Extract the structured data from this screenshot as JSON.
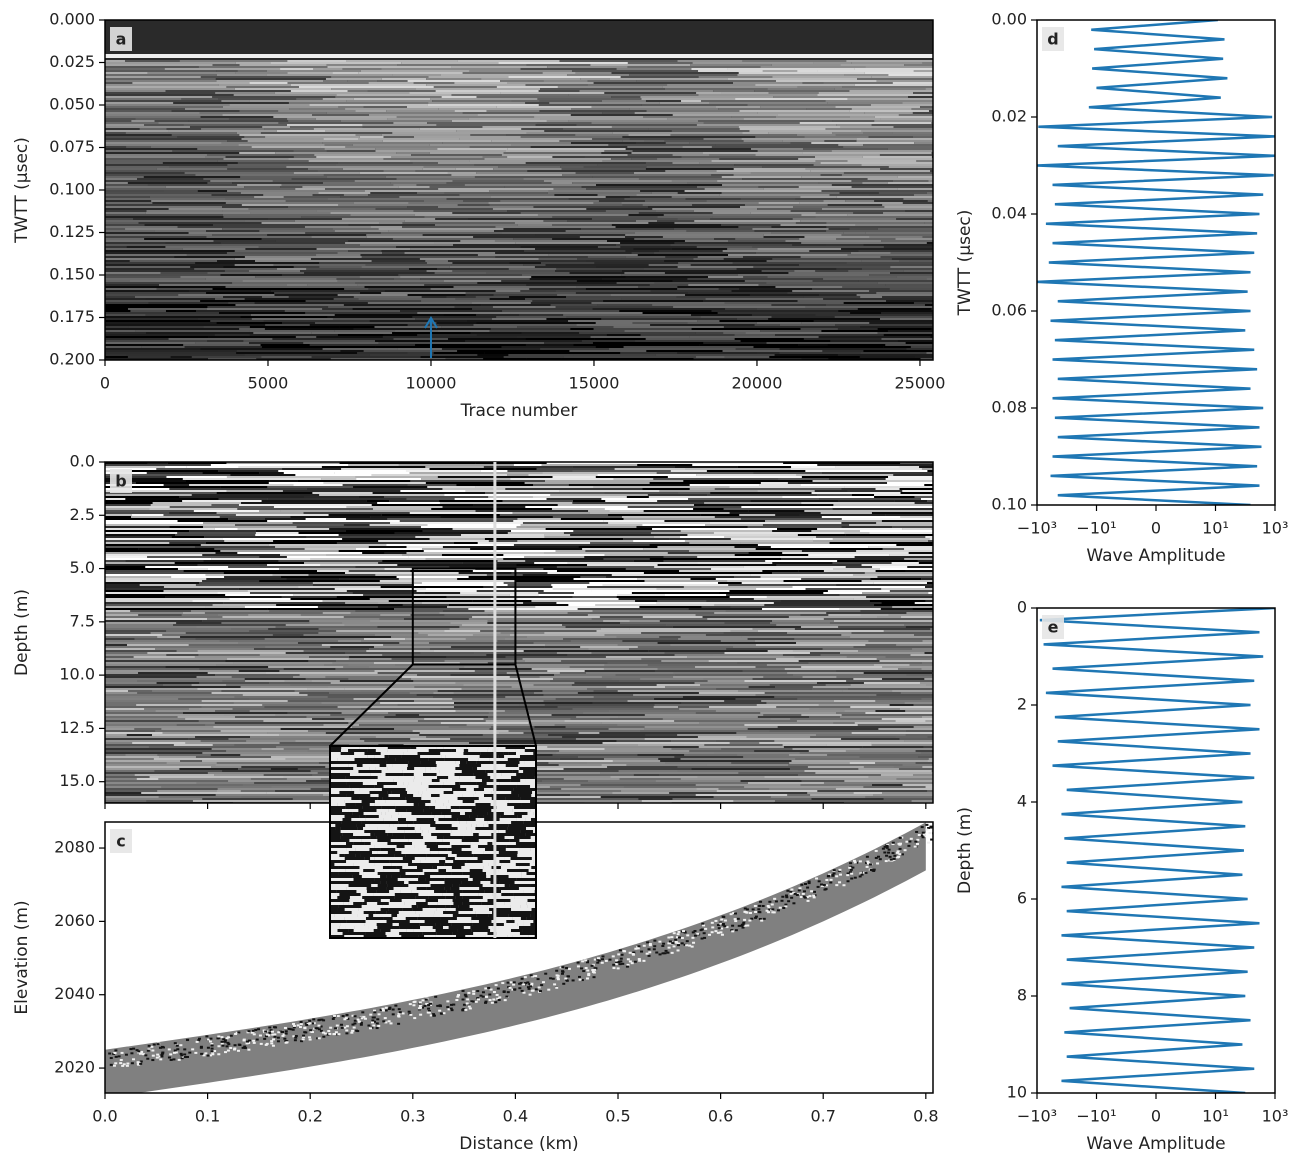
{
  "chart_data": [
    {
      "type": "radargram",
      "panel_label": "a",
      "x_label": "Trace number",
      "y_label": "TWTT (μsec)",
      "xlim": [
        0,
        25400
      ],
      "xticks": [
        0,
        5000,
        10000,
        15000,
        20000,
        25000
      ],
      "ylim": [
        0.2,
        0
      ],
      "yticks": [
        {
          "value": 0,
          "label": "0.000"
        },
        {
          "value": 0.025,
          "label": "0.025"
        },
        {
          "value": 0.05,
          "label": "0.050"
        },
        {
          "value": 0.075,
          "label": "0.075"
        },
        {
          "value": 0.1,
          "label": "0.100"
        },
        {
          "value": 0.125,
          "label": "0.125"
        },
        {
          "value": 0.15,
          "label": "0.150"
        },
        {
          "value": 0.175,
          "label": "0.175"
        },
        {
          "value": 0.2,
          "label": "0.200"
        }
      ],
      "arrow_x": 10000,
      "arrow_color": "#1f77b4"
    },
    {
      "type": "radargram",
      "panel_label": "b",
      "y_label": "Depth (m)",
      "xlim": [
        0,
        0.807
      ],
      "xticks": [
        0,
        0.1,
        0.2,
        0.3,
        0.4,
        0.5,
        0.6,
        0.7,
        0.8
      ],
      "ylim": [
        16,
        0
      ],
      "yticks": [
        {
          "value": 0,
          "label": "0.0"
        },
        2.5,
        {
          "value": 5,
          "label": "5.0"
        },
        {
          "value": 7.5,
          "label": "7.5"
        },
        {
          "value": 10,
          "label": "10.0"
        },
        12.5,
        {
          "value": 15,
          "label": "15.0"
        }
      ],
      "zoom_box": {
        "x": [
          0.3,
          0.4
        ],
        "y": [
          5,
          9.5
        ]
      },
      "marker_x": 0.38
    },
    {
      "type": "elevation",
      "panel_label": "c",
      "x_label": "Distance (km)",
      "y_label": "Elevation (m)",
      "xlim": [
        0,
        0.807
      ],
      "xticks": [
        {
          "value": 0,
          "label": "0.0"
        },
        0.1,
        0.2,
        0.3,
        0.4,
        0.5,
        0.6,
        0.7,
        0.8
      ],
      "ylim": [
        2013.2,
        2087.1
      ],
      "yticks": [
        2020,
        2040,
        2060,
        2080
      ]
    },
    {
      "type": "trace",
      "panel_label": "d",
      "x_label": "Wave Amplitude",
      "y_label": "TWTT (μsec)",
      "color": "#1f77b4",
      "xlim": [
        -1000,
        1000
      ],
      "xticks": [
        {
          "value": -1000,
          "label": "−10³"
        },
        {
          "value": -10,
          "label": "−10¹"
        },
        0,
        {
          "value": 10,
          "label": "10¹"
        },
        {
          "value": 1000,
          "label": "10³"
        }
      ],
      "ylim": [
        0.1,
        0
      ],
      "yticks": [
        {
          "value": 0,
          "label": "0.00"
        },
        0.02,
        0.04,
        0.06,
        0.08,
        {
          "value": 0.1,
          "label": "0.10"
        }
      ],
      "x": [
        0,
        0.002,
        0.004,
        0.006,
        0.008,
        0.01,
        0.012,
        0.014,
        0.016,
        0.018,
        0.02,
        0.022,
        0.024,
        0.026,
        0.028,
        0.03,
        0.032,
        0.034,
        0.036,
        0.038,
        0.04,
        0.042,
        0.044,
        0.046,
        0.048,
        0.05,
        0.052,
        0.054,
        0.056,
        0.058,
        0.06,
        0.062,
        0.064,
        0.066,
        0.068,
        0.07,
        0.072,
        0.074,
        0.076,
        0.078,
        0.08,
        0.082,
        0.084,
        0.086,
        0.088,
        0.09,
        0.092,
        0.094,
        0.096,
        0.098,
        0.1
      ],
      "values": [
        12,
        -15,
        20,
        -12,
        18,
        -14,
        25,
        -10,
        15,
        -18,
        800,
        -900,
        1000,
        -200,
        1000,
        -1000,
        900,
        -300,
        400,
        -250,
        300,
        -500,
        250,
        -300,
        200,
        -400,
        150,
        -1000,
        120,
        -200,
        150,
        -350,
        100,
        -250,
        200,
        -300,
        250,
        -200,
        150,
        -300,
        400,
        -250,
        300,
        -200,
        350,
        -300,
        250,
        -350,
        300,
        -200,
        150
      ]
    },
    {
      "type": "trace",
      "panel_label": "e",
      "x_label": "Wave Amplitude",
      "y_label": "Depth (m)",
      "color": "#1f77b4",
      "xlim": [
        -1000,
        1000
      ],
      "xticks": [
        {
          "value": -1000,
          "label": "−10³"
        },
        {
          "value": -10,
          "label": "−10¹"
        },
        0,
        {
          "value": 10,
          "label": "10¹"
        },
        {
          "value": 1000,
          "label": "10³"
        }
      ],
      "ylim": [
        10,
        0
      ],
      "yticks": [
        0,
        2,
        4,
        6,
        8,
        10
      ],
      "x": [
        0,
        0.25,
        0.5,
        0.75,
        1,
        1.25,
        1.5,
        1.75,
        2,
        2.25,
        2.5,
        2.75,
        3,
        3.25,
        3.5,
        3.75,
        4,
        4.25,
        4.5,
        4.75,
        5,
        5.25,
        5.5,
        5.75,
        6,
        6.25,
        6.5,
        6.75,
        7,
        7.25,
        7.5,
        7.75,
        8,
        8.25,
        8.5,
        8.75,
        9,
        9.25,
        9.5,
        9.75,
        10
      ],
      "values": [
        1000,
        -800,
        300,
        -600,
        400,
        -300,
        200,
        -500,
        150,
        -250,
        300,
        -200,
        150,
        -300,
        200,
        -100,
        80,
        -150,
        100,
        -120,
        90,
        -100,
        80,
        -150,
        120,
        -100,
        300,
        -150,
        200,
        -100,
        120,
        -150,
        100,
        -80,
        150,
        -120,
        80,
        -100,
        200,
        -150,
        100
      ]
    }
  ]
}
